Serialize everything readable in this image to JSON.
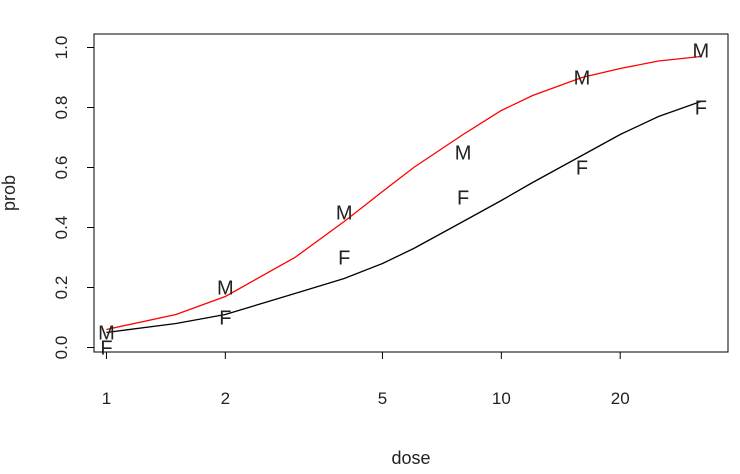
{
  "chart_data": {
    "type": "scatter",
    "title": "",
    "xlabel": "dose",
    "ylabel": "prob",
    "x_scale": "log",
    "xlim": [
      0.93,
      37.5
    ],
    "ylim": [
      -0.015,
      1.045
    ],
    "x_ticks": [
      1,
      2,
      5,
      10,
      20
    ],
    "x_tick_labels": [
      "1",
      "2",
      "5",
      "10",
      "20"
    ],
    "y_ticks": [
      0.0,
      0.2,
      0.4,
      0.6,
      0.8,
      1.0
    ],
    "y_tick_labels": [
      "0.0",
      "0.2",
      "0.4",
      "0.6",
      "0.8",
      "1.0"
    ],
    "grid": false,
    "legend": "none",
    "points": [
      {
        "group": "M",
        "dose": 1,
        "prob": 0.05
      },
      {
        "group": "M",
        "dose": 2,
        "prob": 0.2
      },
      {
        "group": "M",
        "dose": 4,
        "prob": 0.45
      },
      {
        "group": "M",
        "dose": 8,
        "prob": 0.65
      },
      {
        "group": "M",
        "dose": 16,
        "prob": 0.9
      },
      {
        "group": "M",
        "dose": 32,
        "prob": 0.99
      },
      {
        "group": "F",
        "dose": 1,
        "prob": 0.0
      },
      {
        "group": "F",
        "dose": 2,
        "prob": 0.1
      },
      {
        "group": "F",
        "dose": 4,
        "prob": 0.3
      },
      {
        "group": "F",
        "dose": 8,
        "prob": 0.5
      },
      {
        "group": "F",
        "dose": 16,
        "prob": 0.6
      },
      {
        "group": "F",
        "dose": 32,
        "prob": 0.8
      }
    ],
    "series": [
      {
        "group": "M",
        "color": "#ff0000",
        "x": [
          1,
          1.5,
          2,
          3,
          4,
          5,
          6,
          8,
          10,
          12,
          16,
          20,
          25,
          32
        ],
        "y": [
          0.06,
          0.11,
          0.17,
          0.3,
          0.42,
          0.52,
          0.6,
          0.71,
          0.79,
          0.84,
          0.9,
          0.93,
          0.955,
          0.97
        ]
      },
      {
        "group": "F",
        "color": "#000000",
        "x": [
          1,
          1.5,
          2,
          3,
          4,
          5,
          6,
          8,
          10,
          12,
          16,
          20,
          25,
          32
        ],
        "y": [
          0.05,
          0.08,
          0.11,
          0.18,
          0.23,
          0.28,
          0.33,
          0.42,
          0.49,
          0.55,
          0.64,
          0.71,
          0.77,
          0.82
        ]
      }
    ]
  }
}
